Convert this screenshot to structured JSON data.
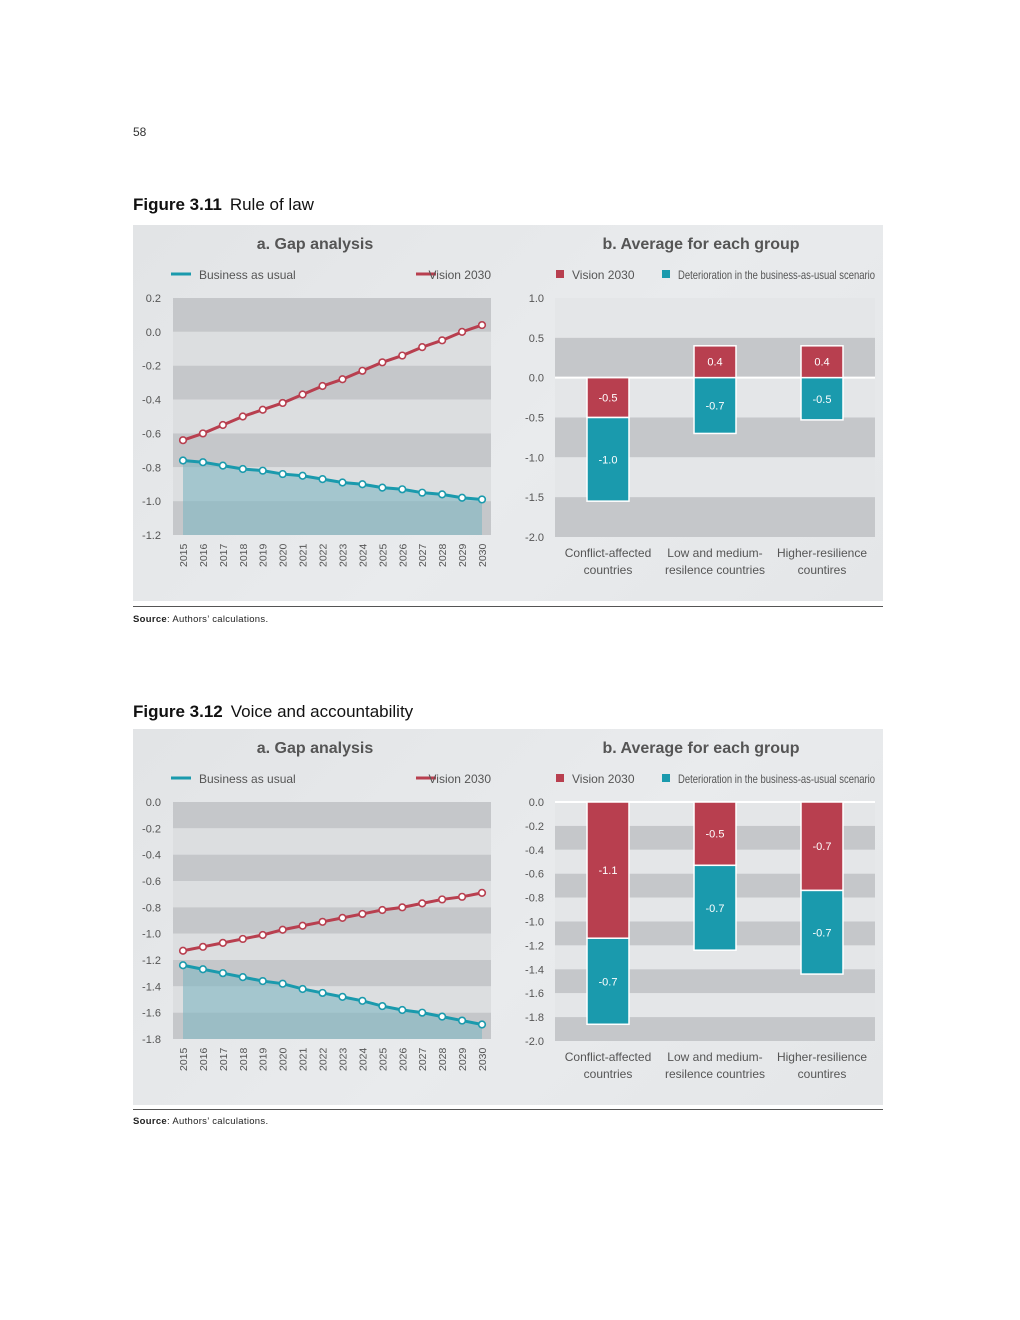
{
  "page_number": "58",
  "figures": [
    {
      "id": "fig311",
      "number": "Figure 3.11",
      "title": "Rule of law",
      "source_label": "Source",
      "source_text": ": Authors’ calculations.",
      "chart_data": [
        {
          "type": "line",
          "title": "a. Gap analysis",
          "x": [
            "2015",
            "2016",
            "2017",
            "2018",
            "2019",
            "2020",
            "2021",
            "2022",
            "2023",
            "2024",
            "2025",
            "2026",
            "2027",
            "2028",
            "2029",
            "2030"
          ],
          "series": [
            {
              "name": "Business as usual",
              "color": "#1a9aad",
              "values": [
                -0.76,
                -0.77,
                -0.79,
                -0.81,
                -0.82,
                -0.84,
                -0.85,
                -0.87,
                -0.89,
                -0.9,
                -0.92,
                -0.93,
                -0.95,
                -0.96,
                -0.98,
                -0.99
              ]
            },
            {
              "name": "Vision 2030",
              "color": "#b83f4f",
              "values": [
                -0.64,
                -0.6,
                -0.55,
                -0.5,
                -0.46,
                -0.42,
                -0.37,
                -0.32,
                -0.28,
                -0.23,
                -0.18,
                -0.14,
                -0.09,
                -0.05,
                0.0,
                0.04
              ]
            }
          ],
          "ylim": [
            -1.2,
            0.2
          ],
          "yticks": [
            "0.2",
            "0.0",
            "-0.2",
            "-0.4",
            "-0.6",
            "-0.8",
            "-1.0",
            "-1.2"
          ],
          "ytick_values": [
            0.2,
            0.0,
            -0.2,
            -0.4,
            -0.6,
            -0.8,
            -1.0,
            -1.2
          ],
          "legend": "top"
        },
        {
          "type": "bar",
          "title": "b. Average for each group",
          "categories": [
            [
              "Conflict-affected",
              "countries"
            ],
            [
              "Low and medium-",
              "resilence countries"
            ],
            [
              "Higher-resilience",
              "countires"
            ]
          ],
          "series": [
            {
              "name": "Vision 2030",
              "color": "#b83f4f",
              "values": [
                -0.5,
                0.4,
                0.4
              ],
              "labels": [
                "-0.5",
                "0.4",
                "0.4"
              ]
            },
            {
              "name": "Deterioration in the business-as-usual scenario",
              "color": "#1a9aad",
              "values": [
                -1.05,
                -0.7,
                -0.53
              ],
              "labels": [
                "-1.0",
                "-0.7",
                "-0.5"
              ]
            }
          ],
          "ylim": [
            -2.0,
            1.0
          ],
          "yticks": [
            "1.0",
            "0.5",
            "0.0",
            "-0.5",
            "-1.0",
            "-1.5",
            "-2.0"
          ],
          "ytick_values": [
            1.0,
            0.5,
            0.0,
            -0.5,
            -1.0,
            -1.5,
            -2.0
          ],
          "legend": "top"
        }
      ]
    },
    {
      "id": "fig312",
      "number": "Figure 3.12",
      "title": "Voice and accountability",
      "source_label": "Source",
      "source_text": ": Authors’ calculations.",
      "chart_data": [
        {
          "type": "line",
          "title": "a. Gap analysis",
          "x": [
            "2015",
            "2016",
            "2017",
            "2018",
            "2019",
            "2020",
            "2021",
            "2022",
            "2023",
            "2024",
            "2025",
            "2026",
            "2027",
            "2028",
            "2029",
            "2030"
          ],
          "series": [
            {
              "name": "Business as usual",
              "color": "#1a9aad",
              "values": [
                -1.24,
                -1.27,
                -1.3,
                -1.33,
                -1.36,
                -1.38,
                -1.42,
                -1.45,
                -1.48,
                -1.51,
                -1.55,
                -1.58,
                -1.6,
                -1.63,
                -1.66,
                -1.69
              ]
            },
            {
              "name": "Vision 2030",
              "color": "#b83f4f",
              "values": [
                -1.13,
                -1.1,
                -1.07,
                -1.04,
                -1.01,
                -0.97,
                -0.94,
                -0.91,
                -0.88,
                -0.85,
                -0.82,
                -0.8,
                -0.77,
                -0.74,
                -0.72,
                -0.69
              ]
            }
          ],
          "ylim": [
            -1.8,
            0.0
          ],
          "yticks": [
            "0.0",
            "-0.2",
            "-0.4",
            "-0.6",
            "-0.8",
            "-1.0",
            "-1.2",
            "-1.4",
            "-1.6",
            "-1.8"
          ],
          "ytick_values": [
            0.0,
            -0.2,
            -0.4,
            -0.6,
            -0.8,
            -1.0,
            -1.2,
            -1.4,
            -1.6,
            -1.8
          ],
          "legend": "top"
        },
        {
          "type": "bar",
          "title": "b. Average for each group",
          "categories": [
            [
              "Conflict-affected",
              "countries"
            ],
            [
              "Low and medium-",
              "resilence countries"
            ],
            [
              "Higher-resilience",
              "countires"
            ]
          ],
          "series": [
            {
              "name": "Vision 2030",
              "color": "#b83f4f",
              "values": [
                -1.14,
                -0.53,
                -0.74
              ],
              "labels": [
                "-1.1",
                "-0.5",
                "-0.7"
              ]
            },
            {
              "name": "Deterioration in the business-as-usual scenario",
              "color": "#1a9aad",
              "values": [
                -0.72,
                -0.71,
                -0.7
              ],
              "labels": [
                "-0.7",
                "-0.7",
                "-0.7"
              ]
            }
          ],
          "ylim": [
            -2.0,
            0.0
          ],
          "yticks": [
            "0.0",
            "-0.2",
            "-0.4",
            "-0.6",
            "-0.8",
            "-1.0",
            "-1.2",
            "-1.4",
            "-1.6",
            "-1.8",
            "-2.0"
          ],
          "ytick_values": [
            0.0,
            -0.2,
            -0.4,
            -0.6,
            -0.8,
            -1.0,
            -1.2,
            -1.4,
            -1.6,
            -1.8,
            -2.0
          ],
          "legend": "top"
        }
      ]
    }
  ]
}
